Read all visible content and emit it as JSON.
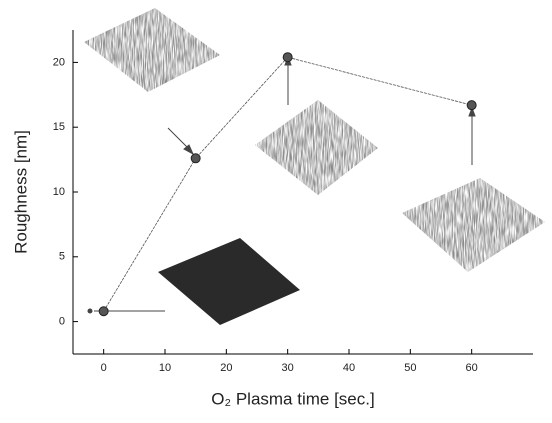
{
  "chart_data": {
    "type": "line",
    "x_label": "O₂ Plasma time [sec.]",
    "y_label": "Roughness [nm]",
    "x": [
      0,
      15,
      30,
      60
    ],
    "series": [
      {
        "color": "#555555",
        "values": [
          0.8,
          12.6,
          20.4,
          16.7
        ]
      }
    ],
    "xlim": [
      -5,
      70
    ],
    "xticks": [
      0,
      10,
      20,
      30,
      40,
      50,
      60
    ],
    "ylim": [
      -2.5,
      22.5
    ],
    "yticks": [
      0,
      5,
      10,
      15,
      20
    ],
    "grid": false
  }
}
